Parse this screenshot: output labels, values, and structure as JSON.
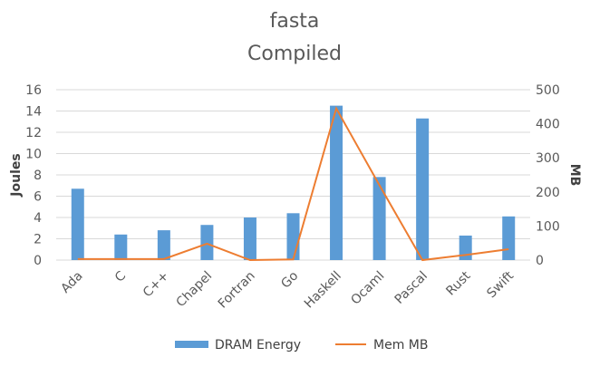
{
  "chart_data": {
    "type": "bar",
    "title": "fasta",
    "subtitle": "Compiled",
    "categories": [
      "Ada",
      "C",
      "C++",
      "Chapel",
      "Fortran",
      "Go",
      "Haskell",
      "Ocaml",
      "Pascal",
      "Rust",
      "Swift"
    ],
    "series": [
      {
        "name": "DRAM Energy",
        "type": "bar",
        "axis": "left",
        "color": "#5b9bd5",
        "values": [
          6.7,
          2.4,
          2.8,
          3.3,
          4.0,
          4.4,
          14.5,
          7.8,
          13.3,
          2.3,
          4.1
        ]
      },
      {
        "name": "Mem MB",
        "type": "line",
        "axis": "right",
        "color": "#ed7d31",
        "values": [
          3,
          3,
          3,
          48,
          0,
          2,
          445,
          220,
          0,
          15,
          32
        ]
      }
    ],
    "ylabel": "Joules",
    "y2label": "MB",
    "ylim": [
      0,
      16
    ],
    "yticks": [
      "0",
      "2",
      "4",
      "6",
      "8",
      "10",
      "12",
      "14",
      "16"
    ],
    "y2lim": [
      0,
      500
    ],
    "y2ticks": [
      "0",
      "100",
      "200",
      "300",
      "400",
      "500"
    ],
    "grid": true,
    "legend": "bottom"
  }
}
